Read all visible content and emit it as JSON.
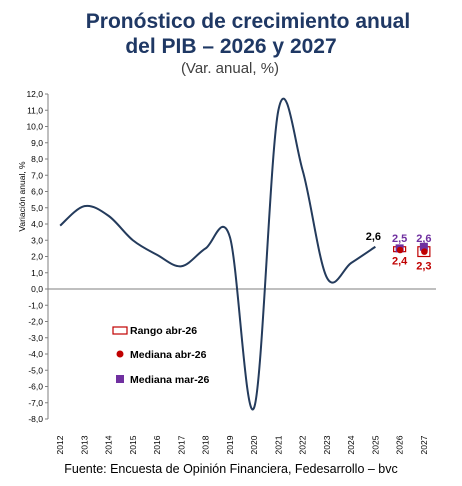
{
  "header": {
    "title_line1": "Pronóstico de crecimiento anual",
    "title_line2": "del PIB – 2026 y 2027",
    "subtitle": "(Var. anual, %)"
  },
  "footer": {
    "source": "Fuente: Encuesta de Opinión Financiera, Fedesarrollo – bvc"
  },
  "colors": {
    "line": "#243b5c",
    "range": "#c00000",
    "mediana_abr": "#c00000",
    "mediana_mar": "#7030a0",
    "axis": "#7f7f7f"
  },
  "chart_data": {
    "type": "line",
    "ylabel": "Variación anual, %",
    "ylim": [
      -8.0,
      12.0
    ],
    "ytick_step": 1.0,
    "categories": [
      "2012",
      "2013",
      "2014",
      "2015",
      "2016",
      "2017",
      "2018",
      "2019",
      "2020",
      "2021",
      "2022",
      "2023",
      "2024",
      "2025",
      "2026",
      "2027"
    ],
    "series": [
      {
        "values": [
          3.9,
          5.1,
          4.5,
          3.0,
          2.1,
          1.4,
          2.5,
          3.2,
          -7.3,
          11.0,
          7.3,
          0.7,
          1.6,
          2.6,
          null,
          null
        ]
      }
    ],
    "last_label": "2,6",
    "forecasts": [
      {
        "year": "2026",
        "range_low": 2.3,
        "range_high": 2.6,
        "mediana_abr": 2.4,
        "mediana_mar": 2.5,
        "label_mar": "2,5",
        "label_abr": "2,4"
      },
      {
        "year": "2027",
        "range_low": 2.0,
        "range_high": 2.6,
        "mediana_abr": 2.3,
        "mediana_mar": 2.6,
        "label_mar": "2,6",
        "label_abr": "2,3"
      }
    ],
    "legend": {
      "range": "Rango abr-26",
      "mediana_abr": "Mediana abr-26",
      "mediana_mar": "Mediana mar-26",
      "placement": "lower-left"
    }
  }
}
